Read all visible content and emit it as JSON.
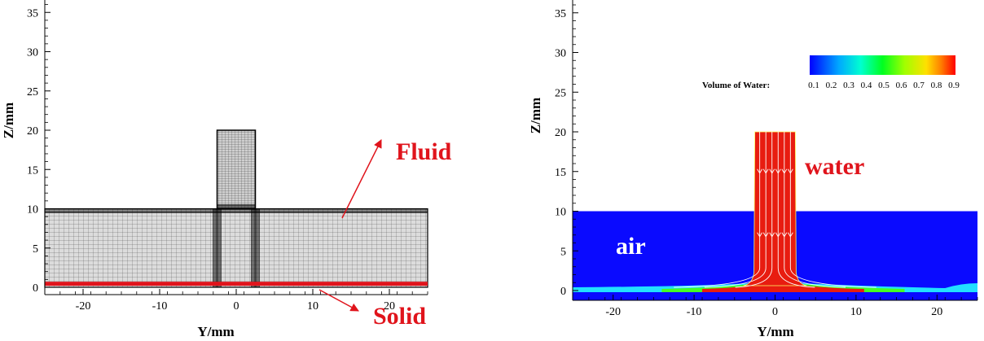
{
  "chart_data": [
    {
      "type": "mesh",
      "title": "",
      "xlabel": "Y/mm",
      "ylabel": "Z/mm",
      "xlim": [
        -25,
        25
      ],
      "ylim": [
        -1,
        36
      ],
      "xticks": [
        "-20",
        "-10",
        "0",
        "10",
        "20"
      ],
      "yticks": [
        "0",
        "5",
        "10",
        "15",
        "20",
        "25",
        "30",
        "35"
      ],
      "regions": {
        "fluid_layer": {
          "y_range": [
            -25,
            25
          ],
          "z_range": [
            0.5,
            10
          ]
        },
        "channel": {
          "y_range": [
            -2.5,
            2.5
          ],
          "z_range": [
            10,
            20
          ]
        },
        "solid_layer": {
          "y_range": [
            -25,
            25
          ],
          "z_range": [
            0,
            0.5
          ]
        }
      },
      "annotations": [
        {
          "text": "Fluid",
          "color": "#e0141c"
        },
        {
          "text": "Solid",
          "color": "#e0141c"
        }
      ]
    },
    {
      "type": "contour",
      "title": "",
      "xlabel": "Y/mm",
      "ylabel": "Z/mm",
      "xlim": [
        -25,
        25
      ],
      "ylim": [
        -1,
        36
      ],
      "xticks": [
        "-20",
        "-10",
        "0",
        "10",
        "20"
      ],
      "yticks": [
        "0",
        "5",
        "10",
        "15",
        "20",
        "25",
        "30",
        "35"
      ],
      "legend": {
        "title": "Volume of Water:",
        "levels": [
          "0.1",
          "0.2",
          "0.3",
          "0.4",
          "0.5",
          "0.6",
          "0.7",
          "0.8",
          "0.9"
        ],
        "placement": "top-right"
      },
      "regions": {
        "air": {
          "y_range": [
            -25,
            25
          ],
          "z_range": [
            0,
            10
          ],
          "vof": 0.0
        },
        "water_jet": {
          "y_range": [
            -2.5,
            2.5
          ],
          "z_range": [
            0,
            20
          ],
          "vof": 1.0
        },
        "water_film": {
          "y_range": [
            -25,
            25
          ],
          "z_range": [
            0,
            0.5
          ],
          "vof": 0.9
        }
      },
      "annotations": [
        {
          "text": "water",
          "color": "#e0141c"
        },
        {
          "text": "air",
          "color": "#ffffff"
        }
      ]
    }
  ],
  "colors": {
    "red": "#e0141c",
    "air_blue": "#0a0aff",
    "water_red": "#e81c10",
    "mesh_fill": "#d8d8d8"
  }
}
